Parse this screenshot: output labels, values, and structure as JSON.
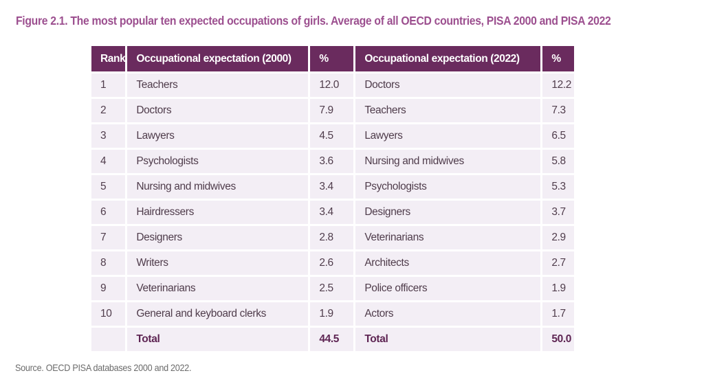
{
  "title": "Figure  2.1. The most popular ten expected occupations of girls. Average of all OECD countries, PISA 2000 and PISA 2022",
  "table": {
    "headers": [
      "Rank",
      "Occupational expectation  (2000)",
      "%",
      "Occupational expectation (2022)",
      "%"
    ],
    "rows": [
      {
        "rank": "1",
        "occ_2000": "Teachers",
        "pct_2000": "12.0",
        "occ_2022": "Doctors",
        "pct_2022": "12.2"
      },
      {
        "rank": "2",
        "occ_2000": "Doctors",
        "pct_2000": "7.9",
        "occ_2022": "Teachers",
        "pct_2022": "7.3"
      },
      {
        "rank": "3",
        "occ_2000": "Lawyers",
        "pct_2000": "4.5",
        "occ_2022": "Lawyers",
        "pct_2022": "6.5"
      },
      {
        "rank": "4",
        "occ_2000": "Psychologists",
        "pct_2000": "3.6",
        "occ_2022": "Nursing and midwives",
        "pct_2022": "5.8"
      },
      {
        "rank": "5",
        "occ_2000": "Nursing and midwives",
        "pct_2000": "3.4",
        "occ_2022": "Psychologists",
        "pct_2022": "5.3"
      },
      {
        "rank": "6",
        "occ_2000": "Hairdressers",
        "pct_2000": "3.4",
        "occ_2022": "Designers",
        "pct_2022": "3.7"
      },
      {
        "rank": "7",
        "occ_2000": "Designers",
        "pct_2000": "2.8",
        "occ_2022": "Veterinarians",
        "pct_2022": "2.9"
      },
      {
        "rank": "8",
        "occ_2000": "Writers",
        "pct_2000": "2.6",
        "occ_2022": "Architects",
        "pct_2022": "2.7"
      },
      {
        "rank": "9",
        "occ_2000": "Veterinarians",
        "pct_2000": "2.5",
        "occ_2022": "Police officers",
        "pct_2022": "1.9"
      },
      {
        "rank": "10",
        "occ_2000": "General and keyboard clerks",
        "pct_2000": "1.9",
        "occ_2022": "Actors",
        "pct_2022": "1.7"
      }
    ],
    "total": {
      "label_2000": "Total",
      "value_2000": "44.5",
      "label_2022": "Total",
      "value_2022": "50.0"
    }
  },
  "source": "Source. OECD PISA databases 2000 and 2022.",
  "colors": {
    "header_bg": "#6a2b5e",
    "row_bg": "#f3eef5",
    "title": "#9c4f8f"
  }
}
